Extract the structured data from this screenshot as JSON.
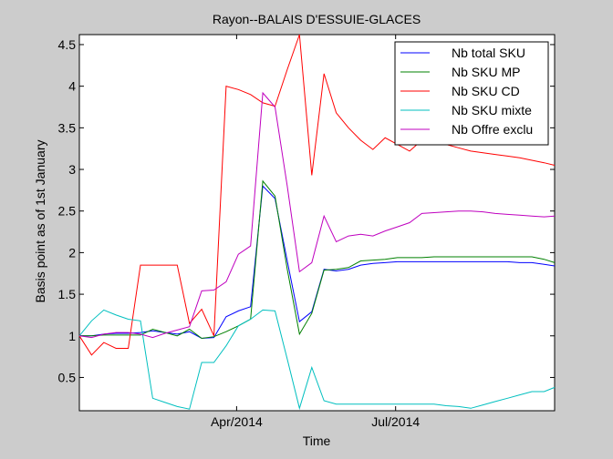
{
  "chart_data": {
    "type": "line",
    "title": "Rayon--BALAIS D'ESSUIE-GLACES",
    "xlabel": "Time",
    "ylabel": "Basis point as of 1st January",
    "x_dates": [
      "2014-01-01",
      "2014-01-08",
      "2014-01-15",
      "2014-01-22",
      "2014-01-29",
      "2014-02-05",
      "2014-02-12",
      "2014-02-19",
      "2014-02-26",
      "2014-03-05",
      "2014-03-12",
      "2014-03-19",
      "2014-03-26",
      "2014-04-02",
      "2014-04-09",
      "2014-04-16",
      "2014-04-23",
      "2014-04-30",
      "2014-05-07",
      "2014-05-14",
      "2014-05-21",
      "2014-05-28",
      "2014-06-04",
      "2014-06-11",
      "2014-06-18",
      "2014-06-25",
      "2014-07-02",
      "2014-07-09",
      "2014-07-16",
      "2014-07-23",
      "2014-07-30",
      "2014-08-06",
      "2014-08-13",
      "2014-08-20",
      "2014-08-27",
      "2014-09-03",
      "2014-09-10",
      "2014-09-17",
      "2014-09-24",
      "2014-09-30"
    ],
    "xlim": [
      "2014-01-01",
      "2014-09-30"
    ],
    "xticks": [
      {
        "date": "2014-04-01",
        "label": "Apr/2014"
      },
      {
        "date": "2014-07-01",
        "label": "Jul/2014"
      }
    ],
    "ylim": [
      0.1,
      4.62
    ],
    "yticks": [
      0.5,
      1,
      1.5,
      2,
      2.5,
      3,
      3.5,
      4,
      4.5
    ],
    "ytick_labels": [
      "0.5",
      "1",
      "1.5",
      "2",
      "2.5",
      "3",
      "3.5",
      "4",
      "4.5"
    ],
    "series": [
      {
        "name": "Nb total SKU",
        "color": "#0000ff",
        "values": [
          1,
          1,
          1.02,
          1.03,
          1.03,
          1.04,
          1.06,
          1.04,
          1.02,
          1.05,
          0.97,
          0.98,
          1.23,
          1.3,
          1.35,
          2.8,
          2.65,
          1.9,
          1.17,
          1.29,
          1.8,
          1.78,
          1.8,
          1.85,
          1.87,
          1.88,
          1.89,
          1.89,
          1.89,
          1.89,
          1.89,
          1.89,
          1.89,
          1.89,
          1.89,
          1.89,
          1.88,
          1.88,
          1.86,
          1.84
        ]
      },
      {
        "name": "Nb SKU MP",
        "color": "#008000",
        "values": [
          1,
          1,
          1.01,
          1.01,
          1.01,
          1.01,
          1.08,
          1.04,
          1.0,
          1.08,
          0.97,
          0.99,
          1.05,
          1.12,
          1.2,
          2.86,
          2.68,
          1.8,
          1.02,
          1.27,
          1.79,
          1.8,
          1.82,
          1.9,
          1.91,
          1.92,
          1.94,
          1.94,
          1.94,
          1.95,
          1.95,
          1.95,
          1.95,
          1.95,
          1.95,
          1.95,
          1.95,
          1.95,
          1.92,
          1.88
        ]
      },
      {
        "name": "Nb SKU CD",
        "color": "#ff0000",
        "values": [
          1,
          0.77,
          0.92,
          0.85,
          0.85,
          1.85,
          1.85,
          1.85,
          1.85,
          1.15,
          1.32,
          1,
          4,
          3.96,
          3.9,
          3.8,
          3.76,
          4.2,
          4.62,
          2.93,
          4.15,
          3.68,
          3.5,
          3.35,
          3.24,
          3.38,
          3.3,
          3.22,
          3.35,
          3.33,
          3.3,
          3.26,
          3.22,
          3.2,
          3.18,
          3.16,
          3.14,
          3.11,
          3.08,
          3.05
        ]
      },
      {
        "name": "Nb SKU mixte",
        "color": "#00bfbf",
        "values": [
          1,
          1.18,
          1.31,
          1.25,
          1.2,
          1.18,
          0.25,
          0.2,
          0.15,
          0.12,
          0.68,
          0.68,
          0.88,
          1.12,
          1.2,
          1.31,
          1.3,
          0.72,
          0.13,
          0.62,
          0.22,
          0.18,
          0.18,
          0.18,
          0.18,
          0.18,
          0.18,
          0.18,
          0.18,
          0.18,
          0.16,
          0.15,
          0.13,
          0.17,
          0.21,
          0.25,
          0.29,
          0.33,
          0.33,
          0.38
        ]
      },
      {
        "name": "Nb Offre exclu",
        "color": "#bf00bf",
        "values": [
          1,
          0.98,
          1.02,
          1.04,
          1.04,
          1.02,
          0.98,
          1.03,
          1.07,
          1.11,
          1.54,
          1.55,
          1.65,
          1.98,
          2.08,
          3.92,
          3.75,
          2.8,
          1.77,
          1.88,
          2.44,
          2.13,
          2.2,
          2.22,
          2.2,
          2.26,
          2.31,
          2.36,
          2.47,
          2.48,
          2.49,
          2.5,
          2.5,
          2.49,
          2.47,
          2.46,
          2.45,
          2.44,
          2.43,
          2.44
        ]
      }
    ],
    "legend_position": "top-right",
    "grid": false
  }
}
